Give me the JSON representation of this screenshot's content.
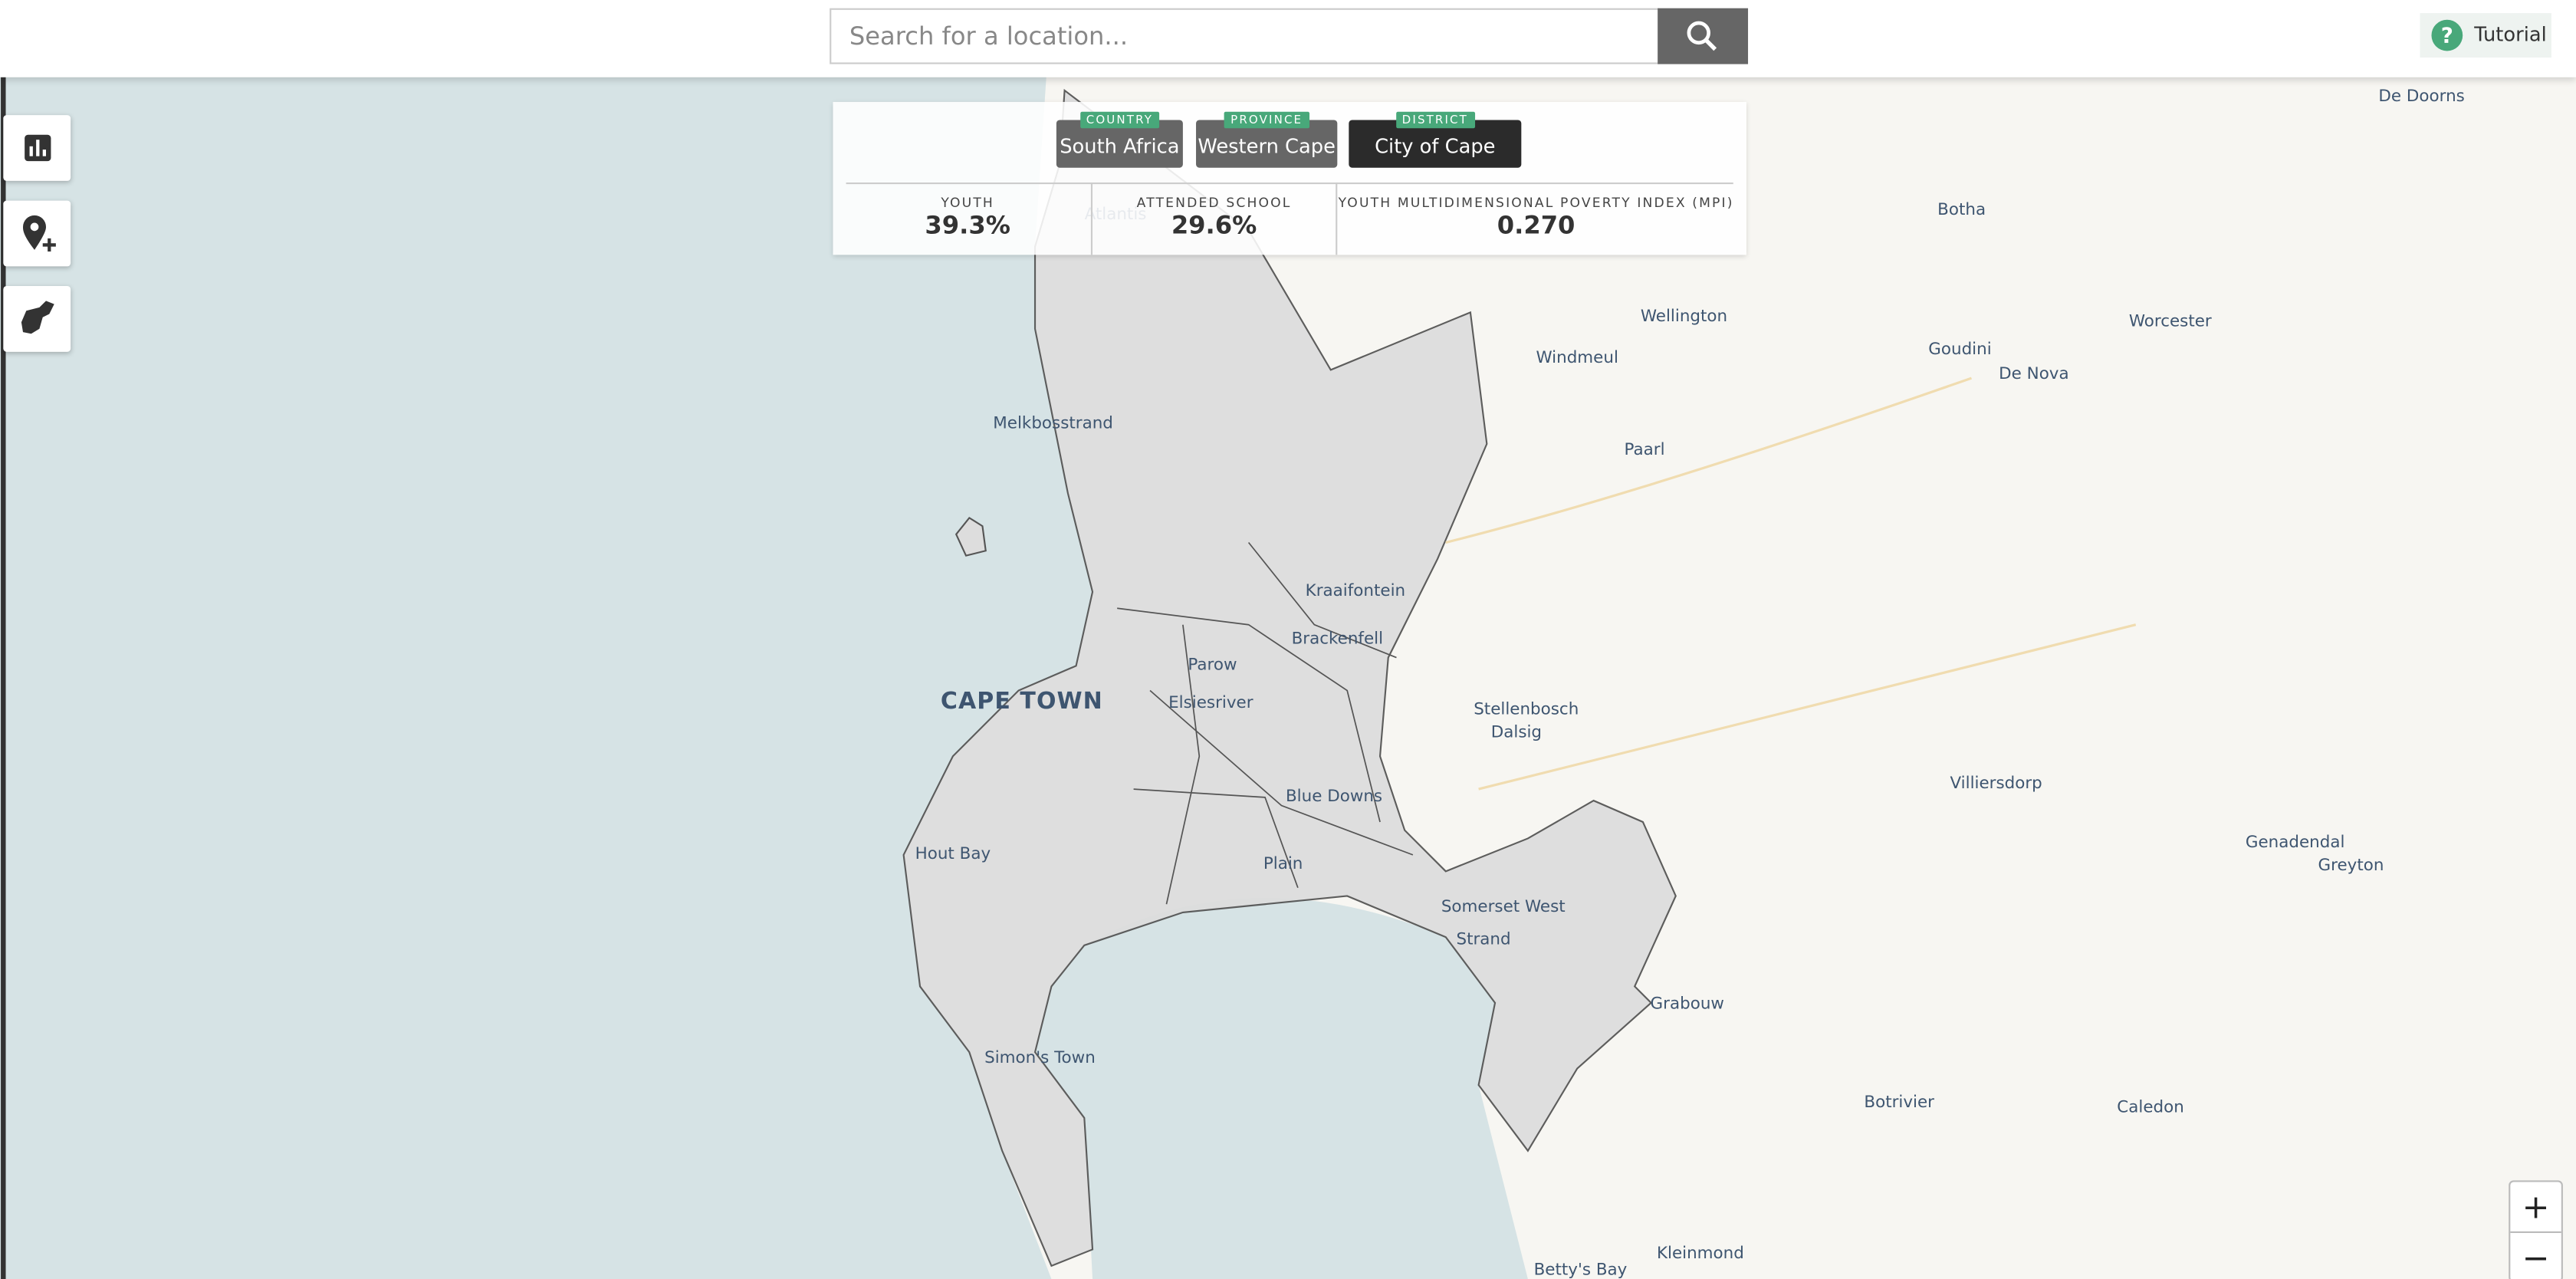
{
  "search": {
    "placeholder": "Search for a location..."
  },
  "tutorial": "Tutorial",
  "breadcrumbs": [
    {
      "level": "COUNTRY",
      "name": "South Africa"
    },
    {
      "level": "PROVINCE",
      "name": "Western Cape"
    },
    {
      "level": "DISTRICT",
      "name": "City of Cape Town"
    }
  ],
  "stats": [
    {
      "label": "YOUTH",
      "value": "39.3%"
    },
    {
      "label": "ATTENDED SCHOOL",
      "value": "29.6%"
    },
    {
      "label": "YOUTH MULTIDIMENSIONAL POVERTY INDEX (MPI)",
      "value": "0.270"
    }
  ],
  "map_labels": [
    "Atlantis",
    "De Doorns",
    "Botha",
    "Wellington",
    "Worcester",
    "Windmeul",
    "Goudini",
    "De Nova",
    "Melkbosstrand",
    "Paarl",
    "Kraaifontein",
    "Brackenfell",
    "Parow",
    "CAPE TOWN",
    "Elsiesriver",
    "Stellenbosch",
    "Dalsig",
    "Villiersdorp",
    "Blue Downs",
    "Hout Bay",
    "Plain",
    "Genadendal",
    "Greyton",
    "Somerset West",
    "Strand",
    "Grabouw",
    "Simon's Town",
    "Botrivier",
    "Caledon",
    "Kleinmond",
    "Betty's Bay"
  ],
  "zoom": {
    "in": "+",
    "out": "−"
  }
}
